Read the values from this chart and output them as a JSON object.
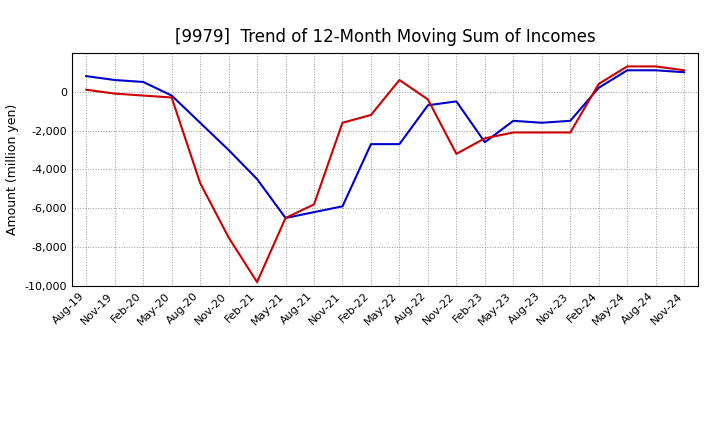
{
  "title": "[9979]  Trend of 12-Month Moving Sum of Incomes",
  "ylabel": "Amount (million yen)",
  "ylim": [
    -10000,
    2000
  ],
  "yticks": [
    -10000,
    -8000,
    -6000,
    -4000,
    -2000,
    0
  ],
  "x_labels": [
    "Aug-19",
    "Nov-19",
    "Feb-20",
    "May-20",
    "Aug-20",
    "Nov-20",
    "Feb-21",
    "May-21",
    "Aug-21",
    "Nov-21",
    "Feb-22",
    "May-22",
    "Aug-22",
    "Nov-22",
    "Feb-23",
    "May-23",
    "Aug-23",
    "Nov-23",
    "Feb-24",
    "May-24",
    "Aug-24",
    "Nov-24"
  ],
  "ordinary_income": [
    800,
    600,
    500,
    -200,
    -1600,
    -3000,
    -4500,
    -6500,
    -6200,
    -5900,
    -2700,
    -2700,
    -700,
    -500,
    -2600,
    -1500,
    -1600,
    -1500,
    200,
    1100,
    1100,
    1000
  ],
  "net_income": [
    100,
    -100,
    -200,
    -300,
    -4700,
    -7500,
    -9800,
    -6500,
    -5800,
    -1600,
    -1200,
    600,
    -400,
    -3200,
    -2400,
    -2100,
    -2100,
    -2100,
    400,
    1300,
    1300,
    1100
  ],
  "ordinary_color": "#0000cc",
  "net_color": "#cc0000",
  "line_width": 1.5,
  "bg_color": "#ffffff",
  "grid_color": "#999999",
  "title_fontsize": 12,
  "label_fontsize": 9,
  "tick_fontsize": 8,
  "legend_fontsize": 10
}
